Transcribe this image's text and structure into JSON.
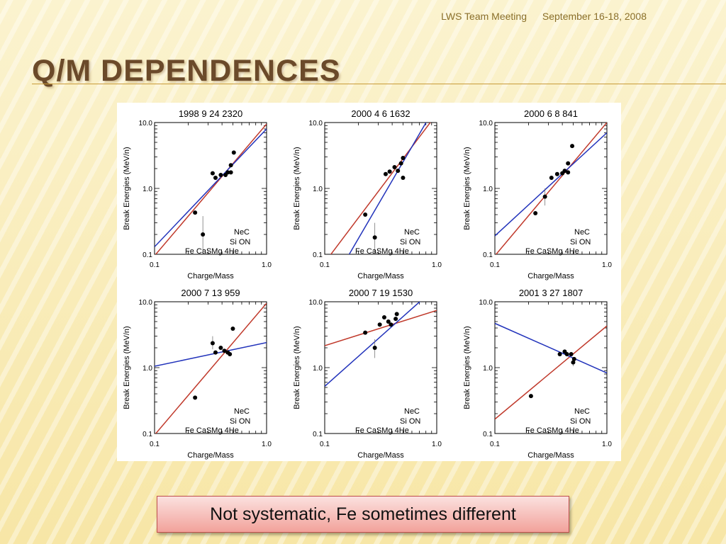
{
  "header": {
    "left": "LWS Team Meeting",
    "right": "September 16-18, 2008"
  },
  "slide_title": "Q/M DEPENDENCES",
  "caption": "Not systematic, Fe sometimes different",
  "colors": {
    "fit_red": "#c0392b",
    "fit_blue": "#2233bb",
    "points": "#000000"
  },
  "chart_data": [
    {
      "type": "scatter",
      "title": "1998  9 24 2320",
      "xlabel": "Charge/Mass",
      "ylabel": "Break Energies (MeV/n)",
      "xlim": [
        0.1,
        1.0
      ],
      "ylim": [
        0.1,
        10.0
      ],
      "xscale": "log",
      "yscale": "log",
      "xticks": [
        "0.1",
        "1.0"
      ],
      "yticks": [
        "0.1",
        "1.0",
        "10.0"
      ],
      "points": [
        {
          "x": 0.23,
          "y": 0.43
        },
        {
          "x": 0.27,
          "y": 0.2,
          "ylo": 0.1,
          "yhi": 0.38
        },
        {
          "x": 0.33,
          "y": 1.7
        },
        {
          "x": 0.35,
          "y": 1.45
        },
        {
          "x": 0.39,
          "y": 1.6
        },
        {
          "x": 0.43,
          "y": 1.6
        },
        {
          "x": 0.45,
          "y": 1.75
        },
        {
          "x": 0.48,
          "y": 2.25
        },
        {
          "x": 0.48,
          "y": 1.75
        },
        {
          "x": 0.51,
          "y": 3.5
        }
      ],
      "fits": [
        {
          "color": "red",
          "y_at_0_1": 0.095,
          "y_at_1_0": 9.5
        },
        {
          "color": "blue",
          "y_at_0_1": 0.13,
          "y_at_1_0": 8.0
        }
      ],
      "element_labels": [
        "NeC",
        "Si  ON",
        "Fe CaSMg 4He"
      ]
    },
    {
      "type": "scatter",
      "title": "2000  4  6 1632",
      "xlabel": "Charge/Mass",
      "ylabel": "Break Energies (MeV/n)",
      "xlim": [
        0.1,
        1.0
      ],
      "ylim": [
        0.1,
        10.0
      ],
      "xscale": "log",
      "yscale": "log",
      "xticks": [
        "0.1",
        "1.0"
      ],
      "yticks": [
        "0.1",
        "1.0",
        "10.0"
      ],
      "points": [
        {
          "x": 0.23,
          "y": 0.4
        },
        {
          "x": 0.28,
          "y": 0.18,
          "ylo": 0.1,
          "yhi": 0.3
        },
        {
          "x": 0.35,
          "y": 1.65
        },
        {
          "x": 0.38,
          "y": 1.8
        },
        {
          "x": 0.42,
          "y": 2.1
        },
        {
          "x": 0.45,
          "y": 1.85
        },
        {
          "x": 0.48,
          "y": 2.4
        },
        {
          "x": 0.5,
          "y": 1.45
        },
        {
          "x": 0.5,
          "y": 2.9
        }
      ],
      "fits": [
        {
          "color": "red",
          "y_at_0_1": 0.075,
          "y_at_1_0": 13.5
        },
        {
          "color": "blue",
          "y_at_0_1": 0.023,
          "y_at_1_0": 19.0
        }
      ],
      "element_labels": [
        "NeC",
        "Si  ON",
        "Fe CaSMg 4He"
      ]
    },
    {
      "type": "scatter",
      "title": "2000  6  8  841",
      "xlabel": "Charge/Mass",
      "ylabel": "Break Energies (MeV/n)",
      "xlim": [
        0.1,
        1.0
      ],
      "ylim": [
        0.1,
        10.0
      ],
      "xscale": "log",
      "yscale": "log",
      "xticks": [
        "0.1",
        "1.0"
      ],
      "yticks": [
        "0.1",
        "1.0",
        "10.0"
      ],
      "points": [
        {
          "x": 0.23,
          "y": 0.42
        },
        {
          "x": 0.28,
          "y": 0.75,
          "ylo": 0.55,
          "yhi": 1.0
        },
        {
          "x": 0.32,
          "y": 1.45
        },
        {
          "x": 0.36,
          "y": 1.65
        },
        {
          "x": 0.4,
          "y": 1.7
        },
        {
          "x": 0.42,
          "y": 1.85
        },
        {
          "x": 0.45,
          "y": 2.4
        },
        {
          "x": 0.45,
          "y": 1.75
        },
        {
          "x": 0.49,
          "y": 4.4
        }
      ],
      "fits": [
        {
          "color": "red",
          "y_at_0_1": 0.095,
          "y_at_1_0": 10.0
        },
        {
          "color": "blue",
          "y_at_0_1": 0.19,
          "y_at_1_0": 7.0
        }
      ],
      "element_labels": [
        "NeC",
        "Si  ON",
        "Fe CaSMg 4He"
      ]
    },
    {
      "type": "scatter",
      "title": "2000  7 13  959",
      "xlabel": "Charge/Mass",
      "ylabel": "Break Energies (MeV/n)",
      "xlim": [
        0.1,
        1.0
      ],
      "ylim": [
        0.1,
        10.0
      ],
      "xscale": "log",
      "yscale": "log",
      "xticks": [
        "0.1",
        "1.0"
      ],
      "yticks": [
        "0.1",
        "1.0",
        "10.0"
      ],
      "points": [
        {
          "x": 0.23,
          "y": 0.35
        },
        {
          "x": 0.33,
          "y": 2.35,
          "ylo": 1.9,
          "yhi": 3.0
        },
        {
          "x": 0.35,
          "y": 1.7
        },
        {
          "x": 0.39,
          "y": 2.0
        },
        {
          "x": 0.42,
          "y": 1.8
        },
        {
          "x": 0.45,
          "y": 1.7
        },
        {
          "x": 0.47,
          "y": 1.6
        },
        {
          "x": 0.5,
          "y": 3.9
        }
      ],
      "fits": [
        {
          "color": "red",
          "y_at_0_1": 0.095,
          "y_at_1_0": 9.5
        },
        {
          "color": "blue",
          "y_at_0_1": 1.05,
          "y_at_1_0": 2.4
        }
      ],
      "element_labels": [
        "NeC",
        "Si  ON",
        "Fe CaSMg 4He"
      ]
    },
    {
      "type": "scatter",
      "title": "2000  7 19 1530",
      "xlabel": "Charge/Mass",
      "ylabel": "Break Energies (MeV/n)",
      "xlim": [
        0.1,
        1.0
      ],
      "ylim": [
        0.1,
        10.0
      ],
      "xscale": "log",
      "yscale": "log",
      "xticks": [
        "0.1",
        "1.0"
      ],
      "yticks": [
        "0.1",
        "1.0",
        "10.0"
      ],
      "points": [
        {
          "x": 0.23,
          "y": 3.4
        },
        {
          "x": 0.28,
          "y": 2.0,
          "ylo": 1.4,
          "yhi": 2.7
        },
        {
          "x": 0.31,
          "y": 4.5
        },
        {
          "x": 0.34,
          "y": 5.8
        },
        {
          "x": 0.37,
          "y": 5.0
        },
        {
          "x": 0.39,
          "y": 4.5
        },
        {
          "x": 0.43,
          "y": 5.5
        },
        {
          "x": 0.44,
          "y": 6.5
        }
      ],
      "fits": [
        {
          "color": "red",
          "y_at_0_1": 2.15,
          "y_at_1_0": 7.4
        },
        {
          "color": "blue",
          "y_at_0_1": 0.52,
          "y_at_1_0": 17.0
        }
      ],
      "element_labels": [
        "NeC",
        "Si  ON",
        "Fe CaSMg 4He"
      ]
    },
    {
      "type": "scatter",
      "title": "2001  3 27 1807",
      "xlabel": "Charge/Mass",
      "ylabel": "Break Energies (MeV/n)",
      "xlim": [
        0.1,
        1.0
      ],
      "ylim": [
        0.1,
        10.0
      ],
      "xscale": "log",
      "yscale": "log",
      "xticks": [
        "0.1",
        "1.0"
      ],
      "yticks": [
        "0.1",
        "1.0",
        "10.0"
      ],
      "points": [
        {
          "x": 0.21,
          "y": 0.37
        },
        {
          "x": 0.38,
          "y": 1.6
        },
        {
          "x": 0.42,
          "y": 1.75
        },
        {
          "x": 0.44,
          "y": 1.6
        },
        {
          "x": 0.48,
          "y": 1.6
        },
        {
          "x": 0.5,
          "y": 1.2,
          "ylo": 1.05,
          "yhi": 1.45
        },
        {
          "x": 0.51,
          "y": 1.35
        }
      ],
      "fits": [
        {
          "color": "red",
          "y_at_0_1": 0.165,
          "y_at_1_0": 4.3
        },
        {
          "color": "blue",
          "y_at_0_1": 4.7,
          "y_at_1_0": 0.83
        }
      ],
      "element_labels": [
        "NeC",
        "Si  ON",
        "Fe CaSMg 4He"
      ]
    }
  ]
}
